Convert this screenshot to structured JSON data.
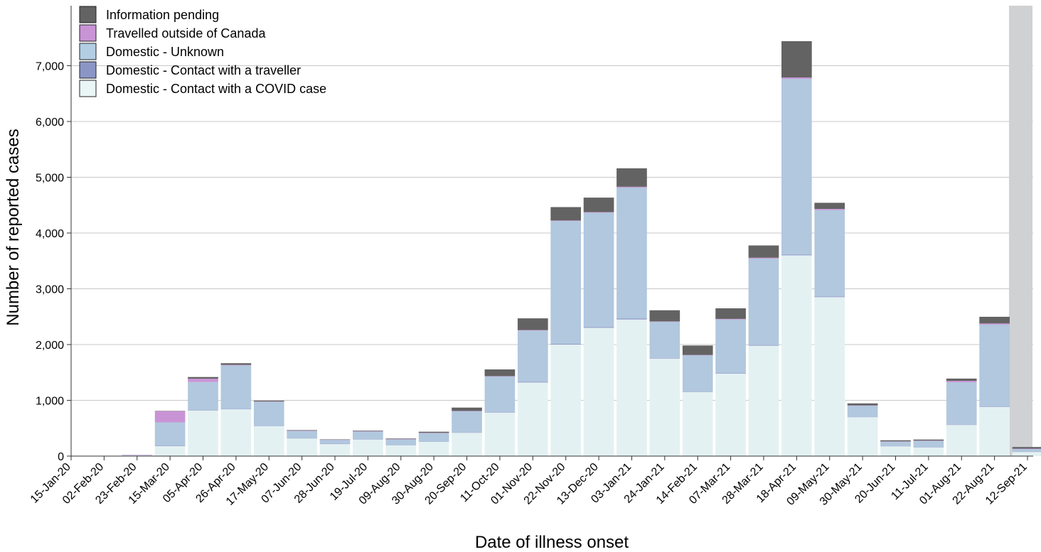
{
  "chart_data": {
    "type": "bar",
    "stacked": true,
    "xlabel": "Date of illness onset",
    "ylabel": "Number of reported cases",
    "ylim": [
      0,
      8000
    ],
    "y_ticks": [
      0,
      1000,
      2000,
      3000,
      4000,
      5000,
      6000,
      7000
    ],
    "y_tick_labels": [
      "0",
      "1,000",
      "2,000",
      "3,000",
      "4,000",
      "5,000",
      "6,000",
      "7,000"
    ],
    "grid": "horizontal",
    "legend_position": "top-left",
    "x_tick_labels": [
      "15-Jan-20",
      "02-Feb-20",
      "23-Feb-20",
      "15-Mar-20",
      "05-Apr-20",
      "26-Apr-20",
      "17-May-20",
      "07-Jun-20",
      "28-Jun-20",
      "19-Jul-20",
      "09-Aug-20",
      "30-Aug-20",
      "20-Sep-20",
      "11-Oct-20",
      "01-Nov-20",
      "22-Nov-20",
      "13-Dec-20",
      "03-Jan-21",
      "24-Jan-21",
      "14-Feb-21",
      "07-Mar-21",
      "28-Mar-21",
      "18-Apr-21",
      "09-May-21",
      "30-May-21",
      "20-Jun-21",
      "11-Jul-21",
      "01-Aug-21",
      "22-Aug-21",
      "12-Sep-21"
    ],
    "shaded_region": {
      "start_index": 29,
      "end_index": 30,
      "color": "#d0d1d3"
    },
    "legend": [
      {
        "name": "Information pending",
        "color": "#636363"
      },
      {
        "name": "Travelled outside of Canada",
        "color": "#c994d6"
      },
      {
        "name": "Domestic - Unknown",
        "color": "#b3cde3"
      },
      {
        "name": "Domestic - Contact with a traveller",
        "color": "#8c96c6"
      },
      {
        "name": "Domestic - Contact with a COVID case",
        "color": "#eaf5f6"
      }
    ],
    "series": [
      {
        "name": "Domestic - Contact with a COVID case",
        "color": "#e4f1f2",
        "values": [
          0,
          2,
          12,
          180,
          820,
          840,
          540,
          320,
          220,
          300,
          200,
          260,
          420,
          780,
          1320,
          2000,
          2300,
          2450,
          1750,
          1150,
          1480,
          1980,
          3600,
          2850,
          700,
          180,
          160,
          560,
          880,
          80
        ]
      },
      {
        "name": "Domestic - Contact with a traveller",
        "color": "#8c96c6",
        "values": [
          0,
          0,
          0,
          5,
          8,
          6,
          4,
          3,
          2,
          3,
          2,
          3,
          5,
          8,
          12,
          15,
          15,
          15,
          10,
          8,
          10,
          12,
          15,
          12,
          5,
          2,
          2,
          5,
          8,
          1
        ]
      },
      {
        "name": "Domestic - Unknown",
        "color": "#b1c8de",
        "values": [
          0,
          1,
          8,
          420,
          500,
          780,
          430,
          130,
          70,
          140,
          100,
          150,
          380,
          640,
          920,
          2200,
          2050,
          2350,
          650,
          650,
          960,
          1550,
          3150,
          1550,
          200,
          80,
          110,
          760,
          1470,
          50
        ]
      },
      {
        "name": "Travelled outside of Canada",
        "color": "#c994d6",
        "values": [
          0,
          0,
          3,
          200,
          60,
          10,
          5,
          3,
          3,
          3,
          3,
          4,
          5,
          6,
          8,
          10,
          10,
          15,
          5,
          5,
          10,
          15,
          25,
          20,
          5,
          2,
          5,
          25,
          20,
          2
        ]
      },
      {
        "name": "Information pending",
        "color": "#636363",
        "values": [
          0,
          0,
          0,
          5,
          30,
          30,
          15,
          10,
          5,
          10,
          10,
          20,
          60,
          120,
          210,
          240,
          260,
          330,
          200,
          170,
          190,
          220,
          650,
          110,
          35,
          20,
          20,
          40,
          120,
          30
        ]
      }
    ]
  }
}
